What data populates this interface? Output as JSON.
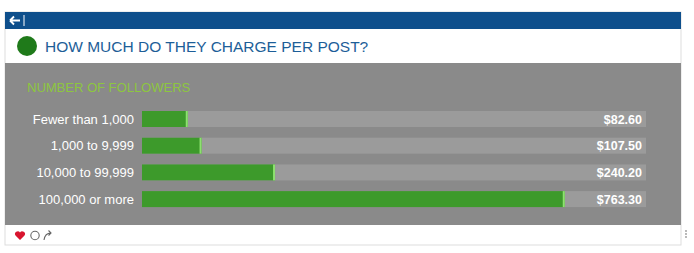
{
  "chart_data": {
    "type": "bar",
    "orientation": "horizontal",
    "title": "HOW MUCH DO THEY CHARGE PER POST?",
    "subtitle": "NUMBER OF FOLLOWERS",
    "categories": [
      "Fewer than 1,000",
      "1,000 to 9,999",
      "10,000 to 99,999",
      "100,000 or more"
    ],
    "values": [
      82.6,
      107.5,
      240.2,
      763.3
    ],
    "value_labels": [
      "$82.60",
      "$107.50",
      "$240.20",
      "$763.30"
    ],
    "data_labels": true,
    "color": "#3d9a2b",
    "xlim": [
      0,
      910
    ],
    "tick_labels": false,
    "grid": false
  }
}
